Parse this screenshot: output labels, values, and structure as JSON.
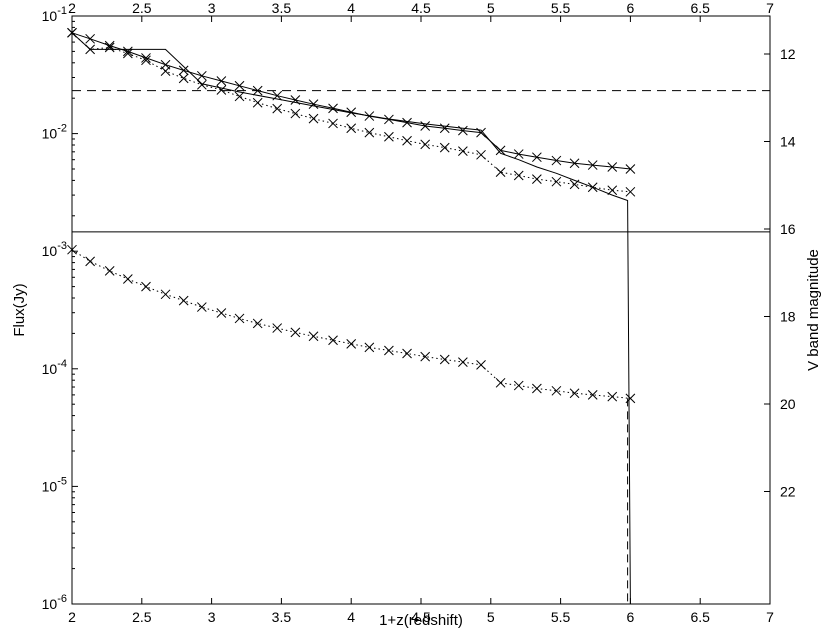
{
  "chart_data": {
    "type": "line",
    "xlabel": "1+z(redshift)",
    "ylabel": "Flux(Jy)",
    "y2label": "V band magnitude",
    "xlim": [
      2,
      7
    ],
    "ylim": [
      1e-06,
      0.1
    ],
    "y_scale": "log",
    "x_ticks": [
      "2",
      "2.5",
      "3",
      "3.5",
      "4",
      "4.5",
      "5",
      "5.5",
      "6",
      "6.5",
      "7"
    ],
    "x_ticks_top": [
      "2",
      "2.5",
      "3",
      "3.5",
      "4",
      "4.5",
      "5",
      "5.5",
      "6",
      "6.5",
      "7"
    ],
    "y_ticks": [
      {
        "value": 1e-06,
        "base": "10",
        "exp": "-6"
      },
      {
        "value": 1e-05,
        "base": "10",
        "exp": "-5"
      },
      {
        "value": 0.0001,
        "base": "10",
        "exp": "-4"
      },
      {
        "value": 0.001,
        "base": "10",
        "exp": "-3"
      },
      {
        "value": 0.01,
        "base": "10",
        "exp": "-2"
      },
      {
        "value": 0.1,
        "base": "10",
        "exp": "-1"
      }
    ],
    "y2_ticks": [
      "12",
      "14",
      "16",
      "18",
      "20",
      "22"
    ],
    "grid": false,
    "hlines": [
      {
        "value": 0.0232,
        "style": "dashed"
      },
      {
        "value": 0.00146,
        "style": "solid"
      }
    ],
    "series": [
      {
        "style": "solid-x",
        "x": [
          2,
          2.13,
          2.27,
          2.4,
          2.53,
          2.67,
          2.8,
          2.93,
          3.07,
          3.2,
          3.33,
          3.47,
          3.6,
          3.73,
          3.87,
          4,
          4.13,
          4.27,
          4.4,
          4.53,
          4.67,
          4.8,
          4.93,
          5.07,
          5.2,
          5.33,
          5.47,
          5.6,
          5.73,
          5.87,
          6
        ],
        "y": [
          0.072,
          0.064,
          0.056,
          0.05,
          0.044,
          0.0385,
          0.0345,
          0.031,
          0.028,
          0.0255,
          0.0232,
          0.021,
          0.0193,
          0.0178,
          0.0164,
          0.0152,
          0.0141,
          0.0132,
          0.0124,
          0.0116,
          0.0111,
          0.0106,
          0.0102,
          0.0072,
          0.0067,
          0.0063,
          0.0059,
          0.0056,
          0.0054,
          0.0052,
          0.005
        ]
      },
      {
        "style": "solid",
        "x": [
          2,
          2.13,
          2.27,
          2.4,
          2.53,
          2.67,
          2.93,
          3.2,
          3.47,
          3.73,
          4,
          4.27,
          4.53,
          4.8,
          4.93,
          5.07,
          5.2,
          5.33,
          5.47,
          5.6,
          5.73,
          5.87,
          5.98,
          6
        ],
        "y": [
          0.072,
          0.052,
          0.052,
          0.052,
          0.052,
          0.052,
          0.0265,
          0.0226,
          0.0197,
          0.0172,
          0.015,
          0.0133,
          0.0121,
          0.0111,
          0.0107,
          0.0068,
          0.006,
          0.0052,
          0.0046,
          0.004,
          0.0035,
          0.003,
          0.0027,
          1e-06
        ]
      },
      {
        "style": "dotted-x",
        "x": [
          2,
          2.13,
          2.27,
          2.4,
          2.53,
          2.67,
          2.8,
          2.93,
          3.07,
          3.2,
          3.33,
          3.47,
          3.6,
          3.73,
          3.87,
          4,
          4.13,
          4.27,
          4.4,
          4.53,
          4.67,
          4.8,
          4.93,
          5.07,
          5.2,
          5.33,
          5.47,
          5.6,
          5.73,
          5.87,
          6
        ],
        "y": [
          0.072,
          0.052,
          0.054,
          0.048,
          0.042,
          0.034,
          0.0295,
          0.026,
          0.0235,
          0.0207,
          0.0183,
          0.0163,
          0.0148,
          0.0134,
          0.0122,
          0.0111,
          0.0102,
          0.0094,
          0.0087,
          0.0081,
          0.0076,
          0.0071,
          0.0066,
          0.0047,
          0.0044,
          0.0041,
          0.0039,
          0.0037,
          0.0035,
          0.0033,
          0.0032
        ]
      },
      {
        "style": "dotted-x",
        "x": [
          2,
          2.13,
          2.27,
          2.4,
          2.53,
          2.67,
          2.8,
          2.93,
          3.07,
          3.2,
          3.33,
          3.47,
          3.6,
          3.73,
          3.87,
          4,
          4.13,
          4.27,
          4.4,
          4.53,
          4.67,
          4.8,
          4.93,
          5.07,
          5.2,
          5.33,
          5.47,
          5.6,
          5.73,
          5.87,
          6
        ],
        "y": [
          0.00103,
          0.00082,
          0.00068,
          0.00058,
          0.0005,
          0.00043,
          0.00038,
          0.000335,
          0.000298,
          0.000268,
          0.000243,
          0.000222,
          0.000204,
          0.000189,
          0.000175,
          0.000163,
          0.000152,
          0.000143,
          0.000135,
          0.000127,
          0.00012,
          0.000114,
          0.000108,
          7.6e-05,
          7.2e-05,
          6.8e-05,
          6.5e-05,
          6.2e-05,
          6e-05,
          5.8e-05,
          5.6e-05
        ]
      },
      {
        "style": "dashed",
        "x": [
          5.98,
          5.98
        ],
        "y": [
          5.6e-05,
          1e-06
        ]
      }
    ]
  }
}
